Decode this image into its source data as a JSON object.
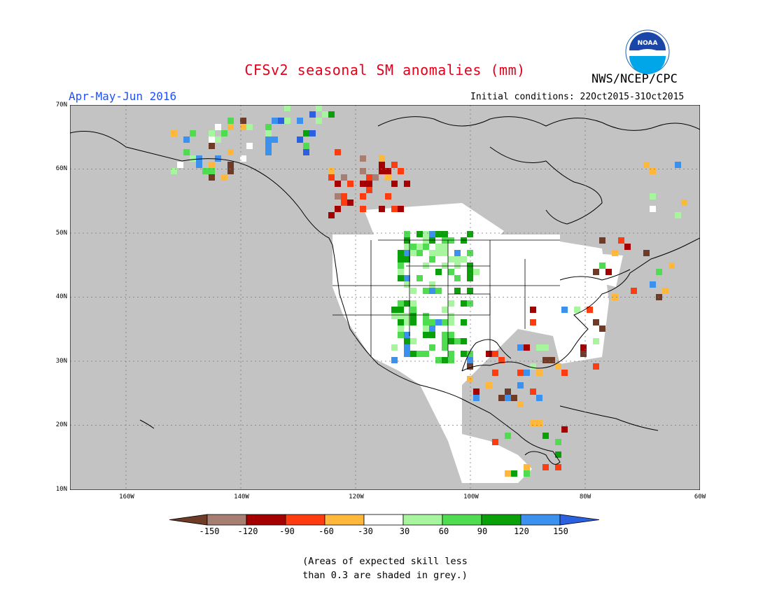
{
  "title": "CFSv2 seasonal SM anomalies (mm)",
  "period": "Apr-May-Jun 2016",
  "agency": "NWS/NCEP/CPC",
  "initial_conditions": "Initial conditions: 22Oct2015-31Oct2015",
  "logo_icon": "noaa-logo-icon",
  "map": {
    "lat_labels": [
      "70N",
      "60N",
      "50N",
      "40N",
      "30N",
      "20N",
      "10N"
    ],
    "lon_labels": [
      "160W",
      "140W",
      "120W",
      "100W",
      "80W",
      "60W"
    ],
    "background_color": "#c3c3c3",
    "land_low_anomaly_color": "#ffffff"
  },
  "colorbar": {
    "labels": [
      "-150",
      "-120",
      "-90",
      "-60",
      "-30",
      "30",
      "60",
      "90",
      "120",
      "150"
    ],
    "colors": [
      "#6e3b26",
      "#a77e72",
      "#a50000",
      "#ff3c10",
      "#ffb83c",
      "#ffffff",
      "#a8f5a0",
      "#50dc50",
      "#0aa00a",
      "#3c90ee",
      "#2b60e0"
    ]
  },
  "note": {
    "line1": "(Areas of expected skill less",
    "line2": "than 0.3 are shaded in grey.)"
  }
}
